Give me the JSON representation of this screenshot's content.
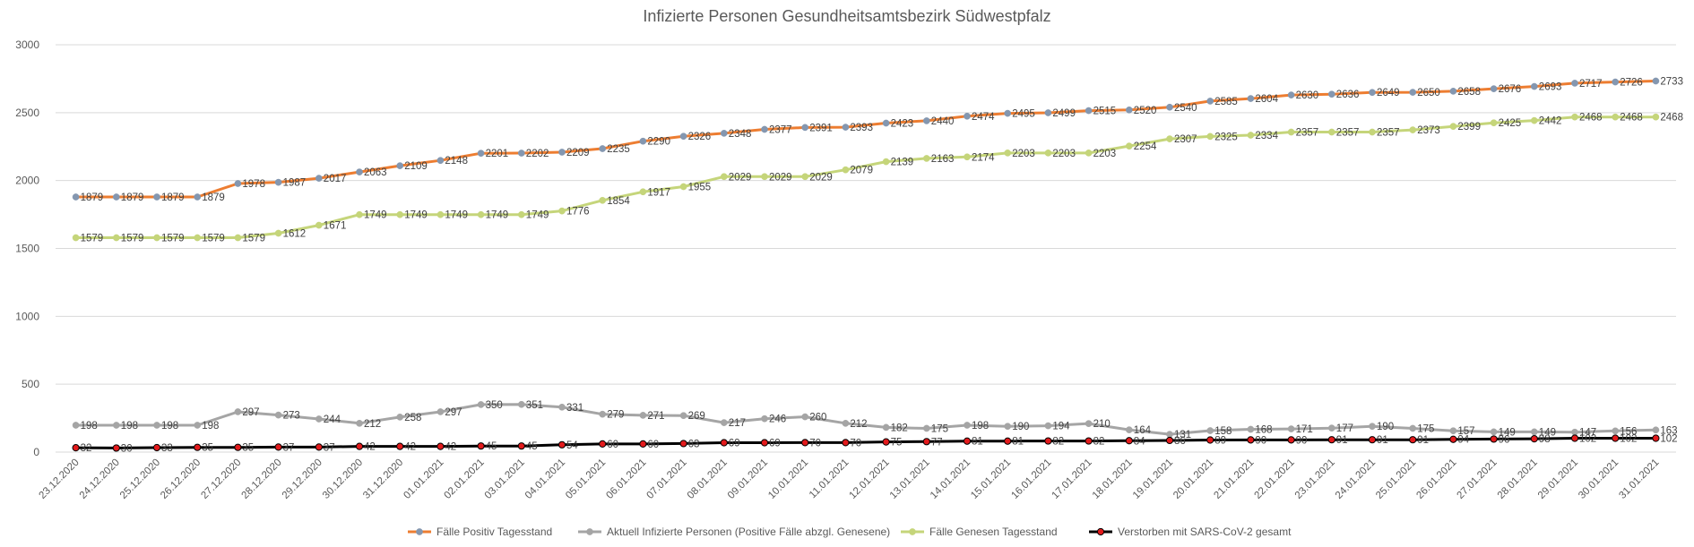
{
  "chart_data": {
    "type": "line",
    "title": "Infizierte Personen Gesundheitsamtsbezirk Südwestpfalz",
    "ylim": [
      0,
      3000
    ],
    "yticks": [
      "0",
      "500",
      "1000",
      "1500",
      "2000",
      "2500",
      "3000"
    ],
    "grid": "horizontal",
    "legend_position": "bottom",
    "x": [
      "23.12.2020",
      "24.12.2020",
      "25.12.2020",
      "26.12.2020",
      "27.12.2020",
      "28.12.2020",
      "29.12.2020",
      "30.12.2020",
      "31.12.2020",
      "01.01.2021",
      "02.01.2021",
      "03.01.2021",
      "04.01.2021",
      "05.01.2021",
      "06.01.2021",
      "07.01.2021",
      "08.01.2021",
      "09.01.2021",
      "10.01.2021",
      "11.01.2021",
      "12.01.2021",
      "13.01.2021",
      "14.01.2021",
      "15.01.2021",
      "16.01.2021",
      "17.01.2021",
      "18.01.2021",
      "19.01.2021",
      "20.01.2021",
      "21.01.2021",
      "22.01.2021",
      "23.01.2021",
      "24.01.2021",
      "25.01.2021",
      "26.01.2021",
      "27.01.2021",
      "28.01.2021",
      "29.01.2021",
      "30.01.2021",
      "31.01.2021"
    ],
    "series": [
      {
        "name": "Fälle Positiv Tagesstand",
        "line_color": "#ED7D31",
        "marker_color": "#8497B0",
        "values": [
          1879,
          1879,
          1879,
          1879,
          1978,
          1987,
          2017,
          2063,
          2109,
          2148,
          2201,
          2202,
          2209,
          2235,
          2290,
          2326,
          2348,
          2377,
          2391,
          2393,
          2423,
          2440,
          2474,
          2495,
          2499,
          2515,
          2520,
          2540,
          2585,
          2604,
          2630,
          2636,
          2649,
          2650,
          2658,
          2676,
          2693,
          2717,
          2726,
          2733
        ]
      },
      {
        "name": "Aktuell Infizierte Personen (Positive Fälle abzgl. Genesene)",
        "line_color": "#A5A5A5",
        "marker_color": "#A5A5A5",
        "values": [
          198,
          198,
          198,
          198,
          297,
          273,
          244,
          212,
          258,
          297,
          350,
          351,
          331,
          279,
          271,
          269,
          217,
          246,
          260,
          212,
          182,
          175,
          198,
          190,
          194,
          210,
          164,
          131,
          158,
          168,
          171,
          177,
          190,
          175,
          157,
          149,
          149,
          147,
          156,
          163
        ]
      },
      {
        "name": "Fälle Genesen Tagesstand",
        "line_color": "#C5D57A",
        "marker_color": "#C5D57A",
        "values": [
          1579,
          1579,
          1579,
          1579,
          1579,
          1612,
          1671,
          1749,
          1749,
          1749,
          1749,
          1749,
          1776,
          1854,
          1917,
          1955,
          2029,
          2029,
          2029,
          2079,
          2139,
          2163,
          2174,
          2203,
          2203,
          2203,
          2254,
          2307,
          2325,
          2334,
          2357,
          2357,
          2357,
          2373,
          2399,
          2425,
          2442,
          2468,
          2468,
          2468
        ]
      },
      {
        "name": "Verstorben mit SARS-CoV-2 gesamt",
        "line_color": "#000000",
        "marker_color": "#E31A1C",
        "values": [
          32,
          30,
          33,
          35,
          35,
          37,
          37,
          42,
          42,
          42,
          45,
          45,
          54,
          60,
          60,
          63,
          69,
          69,
          70,
          70,
          75,
          77,
          81,
          81,
          82,
          82,
          84,
          86,
          89,
          90,
          90,
          91,
          91,
          91,
          94,
          96,
          98,
          102,
          102,
          102
        ]
      }
    ]
  }
}
